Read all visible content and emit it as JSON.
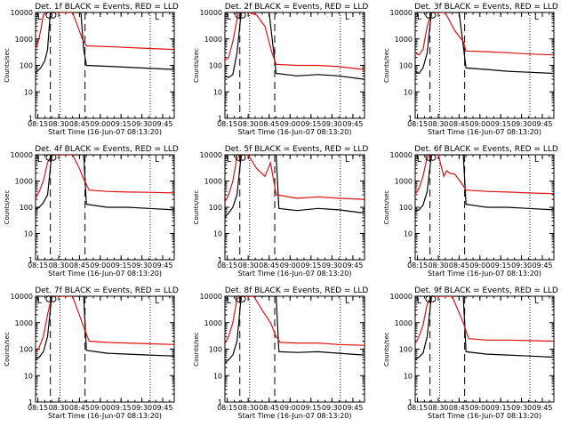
{
  "colors": {
    "events": "#000000",
    "lld": "#dd1111",
    "axes": "#000000",
    "background": "#ffffff"
  },
  "shared": {
    "xlabel": "Start Time (16-Jun-07 08:13:20)",
    "ylabel": "Counts/sec",
    "x_tick_labels": [
      "08:15",
      "08:30",
      "08:45",
      "09:00",
      "09:15",
      "09:30",
      "09:45"
    ],
    "y_tick_labels": [
      "1",
      "10",
      "100",
      "1000",
      "10000"
    ],
    "ylim": [
      1,
      10000
    ],
    "yscale": "log",
    "xlim": [
      "08:13:20",
      "09:53:20"
    ],
    "vlines_dashed": [
      "08:24",
      "08:49"
    ],
    "vlines_dotted": [
      "08:31",
      "09:36"
    ],
    "corner_mark": "L"
  },
  "chart_data": [
    {
      "type": "line",
      "title": "Det. 1f BLACK = Events, RED = LLD",
      "circles_at": [
        "08:23",
        "08:26"
      ],
      "series": [
        {
          "name": "Events",
          "x": [
            "08:13",
            "08:17",
            "08:20",
            "08:22",
            "08:24",
            "08:30",
            "08:40",
            "08:46",
            "08:48",
            "08:50",
            "09:10",
            "09:30",
            "09:53"
          ],
          "y": [
            50,
            80,
            150,
            400,
            10000,
            10000,
            10000,
            10000,
            400,
            100,
            90,
            80,
            70
          ]
        },
        {
          "name": "LLD",
          "x": [
            "08:13",
            "08:15",
            "08:17",
            "08:19",
            "08:21",
            "08:24",
            "08:30",
            "08:40",
            "08:45",
            "08:47",
            "08:50",
            "09:10",
            "09:30",
            "09:53"
          ],
          "y": [
            400,
            700,
            2000,
            8000,
            10000,
            10000,
            10000,
            10000,
            2000,
            1000,
            550,
            500,
            450,
            400
          ]
        }
      ]
    },
    {
      "type": "line",
      "title": "Det. 2f BLACK = Events, RED = LLD",
      "circles_at": [
        "08:23",
        "08:26"
      ],
      "series": [
        {
          "name": "Events",
          "x": [
            "08:13",
            "08:16",
            "08:19",
            "08:22",
            "08:25",
            "08:35",
            "08:45",
            "08:50",
            "09:05",
            "09:20",
            "09:35",
            "09:53"
          ],
          "y": [
            40,
            35,
            45,
            300,
            10000,
            10000,
            10000,
            50,
            40,
            45,
            40,
            30
          ]
        },
        {
          "name": "LLD",
          "x": [
            "08:13",
            "08:16",
            "08:19",
            "08:23",
            "08:30",
            "08:36",
            "08:42",
            "08:47",
            "08:50",
            "09:05",
            "09:20",
            "09:35",
            "09:53"
          ],
          "y": [
            150,
            200,
            800,
            10000,
            10000,
            8000,
            3000,
            300,
            110,
            100,
            100,
            90,
            70
          ]
        }
      ]
    },
    {
      "type": "line",
      "title": "Det. 3f BLACK = Events, RED = LLD",
      "circles_at": [
        "08:23",
        "08:26"
      ],
      "series": [
        {
          "name": "Events",
          "x": [
            "08:13",
            "08:16",
            "08:19",
            "08:22",
            "08:25",
            "08:35",
            "08:45",
            "08:50",
            "09:05",
            "09:20",
            "09:35",
            "09:53"
          ],
          "y": [
            60,
            50,
            80,
            300,
            10000,
            10000,
            10000,
            80,
            70,
            60,
            55,
            50
          ]
        },
        {
          "name": "LLD",
          "x": [
            "08:13",
            "08:16",
            "08:19",
            "08:22",
            "08:25",
            "08:35",
            "08:42",
            "08:48",
            "08:50",
            "09:05",
            "09:20",
            "09:35",
            "09:53"
          ],
          "y": [
            300,
            250,
            400,
            3000,
            10000,
            10000,
            2000,
            800,
            350,
            330,
            300,
            270,
            250
          ]
        }
      ]
    },
    {
      "type": "line",
      "title": "Det. 4f BLACK = Events, RED = LLD",
      "circles_at": [
        "08:23",
        "08:26"
      ],
      "series": [
        {
          "name": "Events",
          "x": [
            "08:13",
            "08:16",
            "08:19",
            "08:22",
            "08:25",
            "08:40",
            "08:48",
            "08:50",
            "09:05",
            "09:20",
            "09:35",
            "09:53"
          ],
          "y": [
            80,
            100,
            150,
            300,
            10000,
            10000,
            10000,
            130,
            100,
            100,
            90,
            80
          ]
        },
        {
          "name": "LLD",
          "x": [
            "08:13",
            "08:16",
            "08:19",
            "08:22",
            "08:25",
            "08:40",
            "08:45",
            "08:48",
            "08:52",
            "09:05",
            "09:20",
            "09:35",
            "09:53"
          ],
          "y": [
            200,
            400,
            1000,
            5000,
            10000,
            10000,
            3000,
            1200,
            450,
            400,
            380,
            370,
            350
          ]
        }
      ]
    },
    {
      "type": "line",
      "title": "Det. 5f BLACK = Events, RED = LLD",
      "circles_at": [
        "08:23",
        "08:26"
      ],
      "series": [
        {
          "name": "Events",
          "x": [
            "08:13",
            "08:16",
            "08:19",
            "08:22",
            "08:25",
            "08:45",
            "08:50",
            "08:52",
            "09:05",
            "09:20",
            "09:35",
            "09:53"
          ],
          "y": [
            40,
            60,
            100,
            300,
            10000,
            10000,
            10000,
            90,
            75,
            90,
            80,
            60
          ]
        },
        {
          "name": "LLD",
          "x": [
            "08:13",
            "08:16",
            "08:19",
            "08:22",
            "08:25",
            "08:30",
            "08:36",
            "08:42",
            "08:46",
            "08:50",
            "09:05",
            "09:20",
            "09:35",
            "09:53"
          ],
          "y": [
            150,
            300,
            1000,
            8000,
            10000,
            10000,
            3000,
            1500,
            5000,
            300,
            220,
            250,
            220,
            200
          ]
        }
      ]
    },
    {
      "type": "line",
      "title": "Det. 6f BLACK = Events, RED = LLD",
      "circles_at": [
        "08:23",
        "08:26"
      ],
      "series": [
        {
          "name": "Events",
          "x": [
            "08:13",
            "08:16",
            "08:19",
            "08:22",
            "08:25",
            "08:45",
            "08:48",
            "08:50",
            "09:05",
            "09:20",
            "09:35",
            "09:53"
          ],
          "y": [
            70,
            80,
            120,
            400,
            10000,
            10000,
            10000,
            130,
            100,
            100,
            90,
            80
          ]
        },
        {
          "name": "LLD",
          "x": [
            "08:13",
            "08:16",
            "08:19",
            "08:22",
            "08:25",
            "08:30",
            "08:34",
            "08:36",
            "08:38",
            "08:42",
            "08:47",
            "08:50",
            "09:05",
            "09:20",
            "09:35",
            "09:53"
          ],
          "y": [
            300,
            500,
            1500,
            8000,
            10000,
            10000,
            1500,
            2500,
            2000,
            1800,
            800,
            450,
            400,
            380,
            350,
            330
          ]
        }
      ]
    },
    {
      "type": "line",
      "title": "Det. 7f BLACK = Events, RED = LLD",
      "circles_at": [
        "08:23",
        "08:26"
      ],
      "series": [
        {
          "name": "Events",
          "x": [
            "08:13",
            "08:16",
            "08:19",
            "08:22",
            "08:25",
            "08:45",
            "08:48",
            "08:50",
            "09:05",
            "09:20",
            "09:35",
            "09:53"
          ],
          "y": [
            40,
            50,
            80,
            300,
            10000,
            10000,
            10000,
            90,
            70,
            65,
            60,
            55
          ]
        },
        {
          "name": "LLD",
          "x": [
            "08:13",
            "08:16",
            "08:19",
            "08:22",
            "08:25",
            "08:40",
            "08:48",
            "08:52",
            "09:05",
            "09:20",
            "09:35",
            "09:53"
          ],
          "y": [
            70,
            120,
            300,
            2000,
            10000,
            10000,
            700,
            200,
            180,
            170,
            160,
            150
          ]
        }
      ]
    },
    {
      "type": "line",
      "title": "Det. 8f BLACK = Events, RED = LLD",
      "circles_at": [
        "08:23",
        "08:26"
      ],
      "series": [
        {
          "name": "Events",
          "x": [
            "08:13",
            "08:16",
            "08:19",
            "08:22",
            "08:25",
            "08:45",
            "08:50",
            "08:52",
            "09:05",
            "09:20",
            "09:35",
            "09:53"
          ],
          "y": [
            30,
            40,
            60,
            200,
            10000,
            10000,
            10000,
            80,
            75,
            80,
            70,
            60
          ]
        },
        {
          "name": "LLD",
          "x": [
            "08:13",
            "08:16",
            "08:19",
            "08:22",
            "08:25",
            "08:34",
            "08:40",
            "08:46",
            "08:50",
            "08:53",
            "09:05",
            "09:20",
            "09:35",
            "09:53"
          ],
          "y": [
            150,
            300,
            1000,
            8000,
            10000,
            10000,
            3000,
            1000,
            300,
            180,
            170,
            170,
            150,
            140
          ]
        }
      ]
    },
    {
      "type": "line",
      "title": "Det. 9f BLACK = Events, RED = LLD",
      "circles_at": [
        "08:23",
        "08:26"
      ],
      "series": [
        {
          "name": "Events",
          "x": [
            "08:13",
            "08:16",
            "08:19",
            "08:22",
            "08:25",
            "08:45",
            "08:48",
            "08:50",
            "09:05",
            "09:20",
            "09:35",
            "09:53"
          ],
          "y": [
            40,
            50,
            70,
            300,
            10000,
            10000,
            10000,
            80,
            65,
            60,
            55,
            50
          ]
        },
        {
          "name": "LLD",
          "x": [
            "08:13",
            "08:16",
            "08:19",
            "08:22",
            "08:25",
            "08:40",
            "08:48",
            "08:52",
            "09:05",
            "09:20",
            "09:35",
            "09:53"
          ],
          "y": [
            150,
            300,
            800,
            5000,
            10000,
            10000,
            1000,
            250,
            220,
            220,
            210,
            200
          ]
        }
      ]
    }
  ]
}
